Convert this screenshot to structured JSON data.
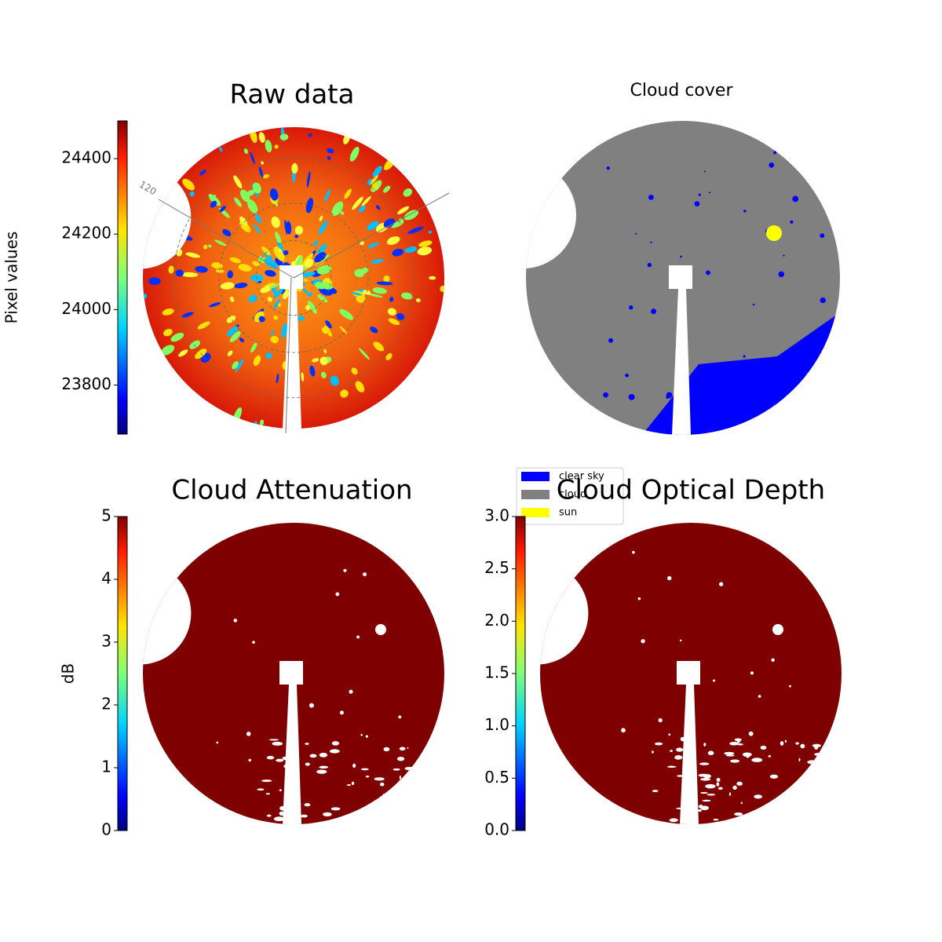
{
  "chart_data": [
    {
      "type": "image",
      "title": "Raw data",
      "colormap": "jet",
      "colorbar_label": "Pixel values",
      "clim": [
        23670,
        24500
      ],
      "cticks": [
        23800,
        24000,
        24200,
        24400
      ],
      "annotations": [
        "120"
      ]
    },
    {
      "type": "image",
      "title": "Cloud cover",
      "legend": [
        {
          "name": "clear sky",
          "color": "#0000ff"
        },
        {
          "name": "cloud",
          "color": "#808080"
        },
        {
          "name": "sun",
          "color": "#ffff00"
        }
      ]
    },
    {
      "type": "image",
      "title": "Cloud Attenuation",
      "colormap": "jet",
      "colorbar_label": "dB",
      "clim": [
        0,
        5
      ],
      "cticks": [
        0,
        1,
        2,
        3,
        4,
        5
      ]
    },
    {
      "type": "image",
      "title": "Cloud Optical Depth",
      "colormap": "jet",
      "clim": [
        0,
        3
      ],
      "cticks": [
        {
          "value": 0,
          "label": "0.0"
        },
        {
          "value": 0.5,
          "label": "0.5"
        },
        {
          "value": 1,
          "label": "1.0"
        },
        {
          "value": 1.5,
          "label": "1.5"
        },
        {
          "value": 2,
          "label": "2.0"
        },
        {
          "value": 2.5,
          "label": "2.5"
        },
        {
          "value": 3,
          "label": "3.0"
        }
      ]
    }
  ]
}
